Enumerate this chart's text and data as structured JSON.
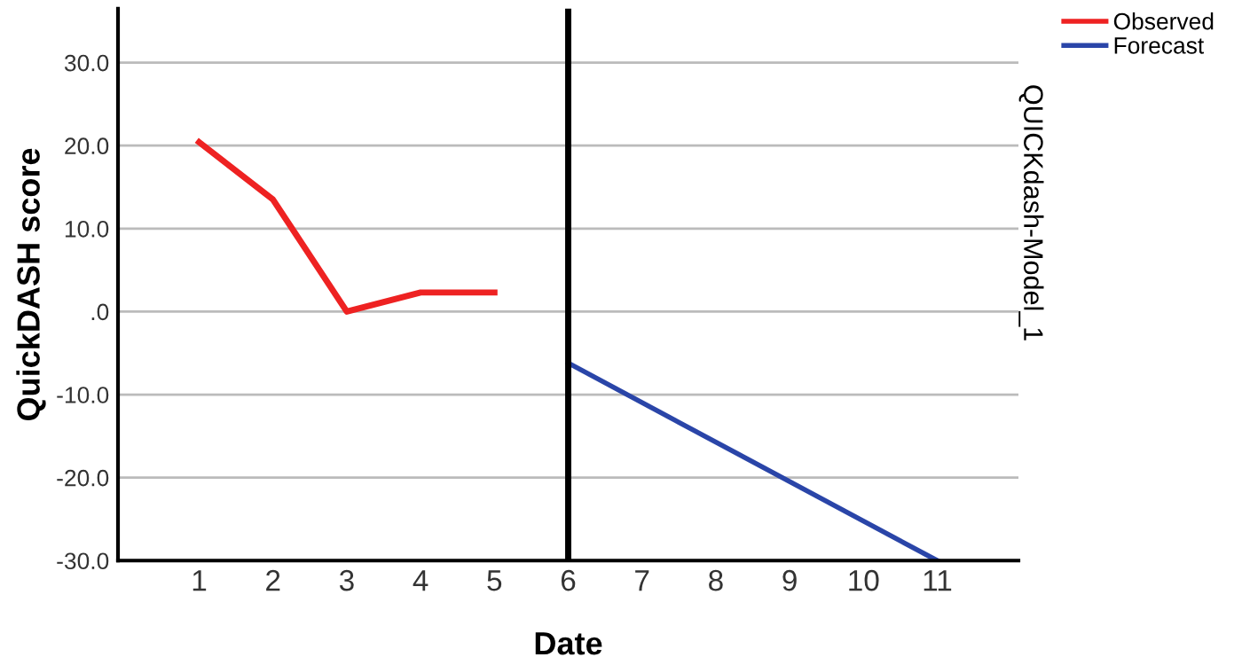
{
  "chart_data": {
    "type": "line",
    "xlabel": "Date",
    "ylabel": "QuickDASH score",
    "y2label": "QUICKdash-Model_1",
    "series": [
      {
        "name": "Observed",
        "color": "#ee2222",
        "x": [
          1,
          2,
          3,
          4,
          5
        ],
        "values": [
          20.4,
          13.5,
          0,
          2.3,
          2.3
        ]
      },
      {
        "name": "Forecast",
        "color": "#2a45a8",
        "x": [
          6,
          11
        ],
        "values": [
          -6.2,
          -30
        ]
      }
    ],
    "xlim": [
      -0.1,
      12.1
    ],
    "ylim": [
      -30,
      36.5
    ],
    "xticks": [
      1,
      2,
      3,
      4,
      5,
      6,
      7,
      8,
      9,
      10,
      11
    ],
    "yticks": [
      {
        "value": -30,
        "label": "-30.0"
      },
      {
        "value": -20,
        "label": "-20.0"
      },
      {
        "value": -10,
        "label": "-10.0"
      },
      {
        "value": 0,
        "label": ".0"
      },
      {
        "value": 10,
        "label": "10.0"
      },
      {
        "value": 20,
        "label": "20.0"
      },
      {
        "value": 30,
        "label": "30.0"
      }
    ],
    "ref_lines": [
      {
        "axis": "x",
        "value": 6,
        "label": null,
        "color": "#000000"
      }
    ],
    "grid": "y",
    "legend": "top right",
    "marker": "none",
    "line_style": "solid"
  }
}
